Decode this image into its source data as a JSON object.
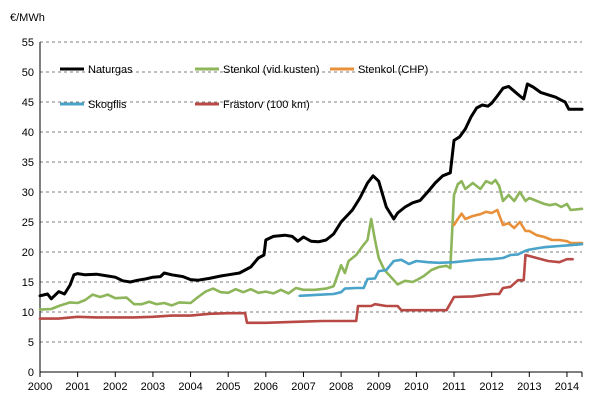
{
  "chart_data": {
    "type": "line",
    "ylabel": "€/MWh",
    "xlim": [
      2000,
      2014.4
    ],
    "ylim": [
      0,
      55
    ],
    "y_ticks": [
      "0",
      "5",
      "10",
      "15",
      "20",
      "25",
      "30",
      "35",
      "40",
      "45",
      "50",
      "55"
    ],
    "x_ticks": [
      "2000",
      "2001",
      "2002",
      "2003",
      "2004",
      "2005",
      "2006",
      "2007",
      "2008",
      "2009",
      "2010",
      "2011",
      "2012",
      "2013",
      "2014"
    ],
    "grid": "horizontal dashed",
    "legend_placement": "top, inside plot",
    "series": [
      {
        "name": "Naturgas",
        "color": "#000000",
        "points": [
          [
            2000.0,
            12.7
          ],
          [
            2000.2,
            13.0
          ],
          [
            2000.3,
            12.2
          ],
          [
            2000.5,
            13.4
          ],
          [
            2000.65,
            13.0
          ],
          [
            2000.8,
            14.5
          ],
          [
            2000.9,
            16.2
          ],
          [
            2001.0,
            16.4
          ],
          [
            2001.2,
            16.2
          ],
          [
            2001.5,
            16.3
          ],
          [
            2001.8,
            16.0
          ],
          [
            2002.0,
            15.8
          ],
          [
            2002.2,
            15.2
          ],
          [
            2002.4,
            15.0
          ],
          [
            2002.6,
            15.3
          ],
          [
            2002.8,
            15.5
          ],
          [
            2003.0,
            15.8
          ],
          [
            2003.2,
            15.9
          ],
          [
            2003.3,
            16.5
          ],
          [
            2003.5,
            16.2
          ],
          [
            2003.8,
            15.9
          ],
          [
            2004.0,
            15.4
          ],
          [
            2004.2,
            15.3
          ],
          [
            2004.5,
            15.6
          ],
          [
            2004.8,
            16.0
          ],
          [
            2005.0,
            16.2
          ],
          [
            2005.3,
            16.5
          ],
          [
            2005.6,
            17.5
          ],
          [
            2005.8,
            19.0
          ],
          [
            2005.95,
            19.5
          ],
          [
            2006.0,
            22.0
          ],
          [
            2006.2,
            22.6
          ],
          [
            2006.5,
            22.8
          ],
          [
            2006.7,
            22.6
          ],
          [
            2006.85,
            21.8
          ],
          [
            2007.0,
            22.5
          ],
          [
            2007.2,
            21.8
          ],
          [
            2007.4,
            21.7
          ],
          [
            2007.6,
            22.0
          ],
          [
            2007.8,
            23.0
          ],
          [
            2008.0,
            25.0
          ],
          [
            2008.3,
            27.0
          ],
          [
            2008.5,
            29.0
          ],
          [
            2008.7,
            31.5
          ],
          [
            2008.85,
            32.7
          ],
          [
            2009.0,
            31.8
          ],
          [
            2009.2,
            27.5
          ],
          [
            2009.4,
            25.5
          ],
          [
            2009.5,
            26.5
          ],
          [
            2009.7,
            27.5
          ],
          [
            2009.9,
            28.2
          ],
          [
            2010.1,
            28.6
          ],
          [
            2010.3,
            30.0
          ],
          [
            2010.5,
            31.5
          ],
          [
            2010.7,
            32.7
          ],
          [
            2010.9,
            33.2
          ],
          [
            2011.0,
            38.6
          ],
          [
            2011.15,
            39.2
          ],
          [
            2011.3,
            40.5
          ],
          [
            2011.45,
            42.5
          ],
          [
            2011.6,
            44.0
          ],
          [
            2011.75,
            44.5
          ],
          [
            2011.9,
            44.3
          ],
          [
            2012.0,
            44.8
          ],
          [
            2012.15,
            46.0
          ],
          [
            2012.3,
            47.3
          ],
          [
            2012.45,
            47.6
          ],
          [
            2012.6,
            46.8
          ],
          [
            2012.75,
            46.0
          ],
          [
            2012.85,
            45.5
          ],
          [
            2012.95,
            48.0
          ],
          [
            2013.1,
            47.5
          ],
          [
            2013.3,
            46.6
          ],
          [
            2013.5,
            46.2
          ],
          [
            2013.7,
            45.8
          ],
          [
            2013.85,
            45.3
          ],
          [
            2013.95,
            45.0
          ],
          [
            2014.05,
            43.8
          ],
          [
            2014.4,
            43.8
          ]
        ]
      },
      {
        "name": "Stenkol (vid kusten)",
        "color": "#8db55a",
        "points": [
          [
            2000.0,
            10.4
          ],
          [
            2000.3,
            10.5
          ],
          [
            2000.5,
            11.0
          ],
          [
            2000.8,
            11.6
          ],
          [
            2001.0,
            11.5
          ],
          [
            2001.2,
            12.0
          ],
          [
            2001.4,
            12.9
          ],
          [
            2001.6,
            12.5
          ],
          [
            2001.8,
            12.9
          ],
          [
            2002.0,
            12.3
          ],
          [
            2002.3,
            12.4
          ],
          [
            2002.5,
            11.3
          ],
          [
            2002.7,
            11.3
          ],
          [
            2002.9,
            11.7
          ],
          [
            2003.1,
            11.3
          ],
          [
            2003.3,
            11.5
          ],
          [
            2003.5,
            11.1
          ],
          [
            2003.7,
            11.6
          ],
          [
            2004.0,
            11.5
          ],
          [
            2004.2,
            12.5
          ],
          [
            2004.4,
            13.4
          ],
          [
            2004.6,
            13.9
          ],
          [
            2004.8,
            13.3
          ],
          [
            2005.0,
            13.2
          ],
          [
            2005.2,
            13.8
          ],
          [
            2005.4,
            13.3
          ],
          [
            2005.6,
            13.8
          ],
          [
            2005.8,
            13.2
          ],
          [
            2006.0,
            13.4
          ],
          [
            2006.2,
            13.1
          ],
          [
            2006.4,
            13.7
          ],
          [
            2006.6,
            13.1
          ],
          [
            2006.8,
            14.0
          ],
          [
            2007.0,
            13.7
          ],
          [
            2007.3,
            13.7
          ],
          [
            2007.6,
            13.9
          ],
          [
            2007.8,
            14.3
          ],
          [
            2007.9,
            16.0
          ],
          [
            2008.0,
            17.8
          ],
          [
            2008.1,
            16.5
          ],
          [
            2008.2,
            18.5
          ],
          [
            2008.4,
            19.5
          ],
          [
            2008.55,
            20.8
          ],
          [
            2008.7,
            22.0
          ],
          [
            2008.8,
            25.5
          ],
          [
            2008.9,
            22.0
          ],
          [
            2009.0,
            19.0
          ],
          [
            2009.15,
            17.0
          ],
          [
            2009.3,
            16.0
          ],
          [
            2009.5,
            14.6
          ],
          [
            2009.7,
            15.2
          ],
          [
            2009.9,
            15.0
          ],
          [
            2010.0,
            15.3
          ],
          [
            2010.2,
            16.0
          ],
          [
            2010.4,
            17.0
          ],
          [
            2010.6,
            17.5
          ],
          [
            2010.8,
            17.7
          ],
          [
            2010.9,
            17.3
          ],
          [
            2011.0,
            29.5
          ],
          [
            2011.1,
            31.3
          ],
          [
            2011.2,
            31.8
          ],
          [
            2011.3,
            30.5
          ],
          [
            2011.5,
            31.5
          ],
          [
            2011.7,
            30.5
          ],
          [
            2011.85,
            31.8
          ],
          [
            2012.0,
            31.4
          ],
          [
            2012.1,
            32.0
          ],
          [
            2012.2,
            31.0
          ],
          [
            2012.3,
            28.5
          ],
          [
            2012.45,
            29.5
          ],
          [
            2012.6,
            28.5
          ],
          [
            2012.75,
            30.0
          ],
          [
            2012.9,
            28.5
          ],
          [
            2013.0,
            29.0
          ],
          [
            2013.2,
            28.5
          ],
          [
            2013.4,
            28.0
          ],
          [
            2013.55,
            27.8
          ],
          [
            2013.7,
            28.0
          ],
          [
            2013.85,
            27.5
          ],
          [
            2014.0,
            28.0
          ],
          [
            2014.1,
            27.0
          ],
          [
            2014.4,
            27.2
          ]
        ]
      },
      {
        "name": "Stenkol (CHP)",
        "color": "#e8913a",
        "points": [
          [
            2011.0,
            24.5
          ],
          [
            2011.1,
            25.5
          ],
          [
            2011.2,
            26.4
          ],
          [
            2011.3,
            25.5
          ],
          [
            2011.5,
            26.0
          ],
          [
            2011.7,
            26.3
          ],
          [
            2011.85,
            26.7
          ],
          [
            2012.0,
            26.5
          ],
          [
            2012.15,
            27.0
          ],
          [
            2012.3,
            24.5
          ],
          [
            2012.45,
            24.8
          ],
          [
            2012.6,
            24.0
          ],
          [
            2012.75,
            25.0
          ],
          [
            2012.9,
            23.5
          ],
          [
            2013.0,
            23.5
          ],
          [
            2013.2,
            22.8
          ],
          [
            2013.4,
            22.5
          ],
          [
            2013.6,
            22.0
          ],
          [
            2013.8,
            22.0
          ],
          [
            2014.0,
            21.8
          ],
          [
            2014.1,
            21.5
          ],
          [
            2014.4,
            21.5
          ]
        ]
      },
      {
        "name": "Skogflis",
        "color": "#4aa3c8",
        "points": [
          [
            2006.9,
            12.7
          ],
          [
            2007.2,
            12.8
          ],
          [
            2007.5,
            12.9
          ],
          [
            2007.8,
            13.0
          ],
          [
            2008.0,
            13.3
          ],
          [
            2008.1,
            13.9
          ],
          [
            2008.4,
            14.0
          ],
          [
            2008.6,
            14.0
          ],
          [
            2008.7,
            15.5
          ],
          [
            2008.9,
            15.6
          ],
          [
            2009.0,
            16.8
          ],
          [
            2009.2,
            17.0
          ],
          [
            2009.4,
            18.5
          ],
          [
            2009.6,
            18.7
          ],
          [
            2009.8,
            18.0
          ],
          [
            2010.0,
            18.5
          ],
          [
            2010.3,
            18.3
          ],
          [
            2010.6,
            18.2
          ],
          [
            2011.0,
            18.3
          ],
          [
            2011.3,
            18.5
          ],
          [
            2011.6,
            18.7
          ],
          [
            2011.9,
            18.8
          ],
          [
            2012.0,
            18.8
          ],
          [
            2012.3,
            19.0
          ],
          [
            2012.5,
            19.5
          ],
          [
            2012.7,
            19.6
          ],
          [
            2012.9,
            20.2
          ],
          [
            2013.0,
            20.4
          ],
          [
            2013.2,
            20.6
          ],
          [
            2013.4,
            20.8
          ],
          [
            2013.6,
            20.9
          ],
          [
            2013.8,
            21.0
          ],
          [
            2014.0,
            21.1
          ],
          [
            2014.4,
            21.3
          ]
        ]
      },
      {
        "name": "Frästorv (100 km)",
        "color": "#b84a46",
        "points": [
          [
            2000.0,
            8.9
          ],
          [
            2000.5,
            8.9
          ],
          [
            2001.0,
            9.2
          ],
          [
            2001.5,
            9.1
          ],
          [
            2002.0,
            9.1
          ],
          [
            2002.5,
            9.1
          ],
          [
            2003.0,
            9.2
          ],
          [
            2003.5,
            9.4
          ],
          [
            2004.0,
            9.4
          ],
          [
            2004.5,
            9.7
          ],
          [
            2005.0,
            9.8
          ],
          [
            2005.45,
            9.8
          ],
          [
            2005.5,
            8.2
          ],
          [
            2006.0,
            8.2
          ],
          [
            2006.5,
            8.3
          ],
          [
            2007.0,
            8.4
          ],
          [
            2007.5,
            8.5
          ],
          [
            2008.0,
            8.5
          ],
          [
            2008.4,
            8.5
          ],
          [
            2008.45,
            11.0
          ],
          [
            2008.8,
            11.0
          ],
          [
            2008.9,
            11.3
          ],
          [
            2009.2,
            11.0
          ],
          [
            2009.5,
            11.0
          ],
          [
            2009.6,
            10.3
          ],
          [
            2010.0,
            10.3
          ],
          [
            2010.5,
            10.3
          ],
          [
            2010.8,
            10.3
          ],
          [
            2011.0,
            12.5
          ],
          [
            2011.5,
            12.6
          ],
          [
            2012.0,
            13.0
          ],
          [
            2012.2,
            13.0
          ],
          [
            2012.3,
            14.0
          ],
          [
            2012.5,
            14.2
          ],
          [
            2012.7,
            15.3
          ],
          [
            2012.85,
            15.3
          ],
          [
            2012.9,
            19.5
          ],
          [
            2013.2,
            19.0
          ],
          [
            2013.5,
            18.5
          ],
          [
            2013.8,
            18.3
          ],
          [
            2014.0,
            18.8
          ],
          [
            2014.15,
            18.8
          ]
        ]
      }
    ]
  }
}
